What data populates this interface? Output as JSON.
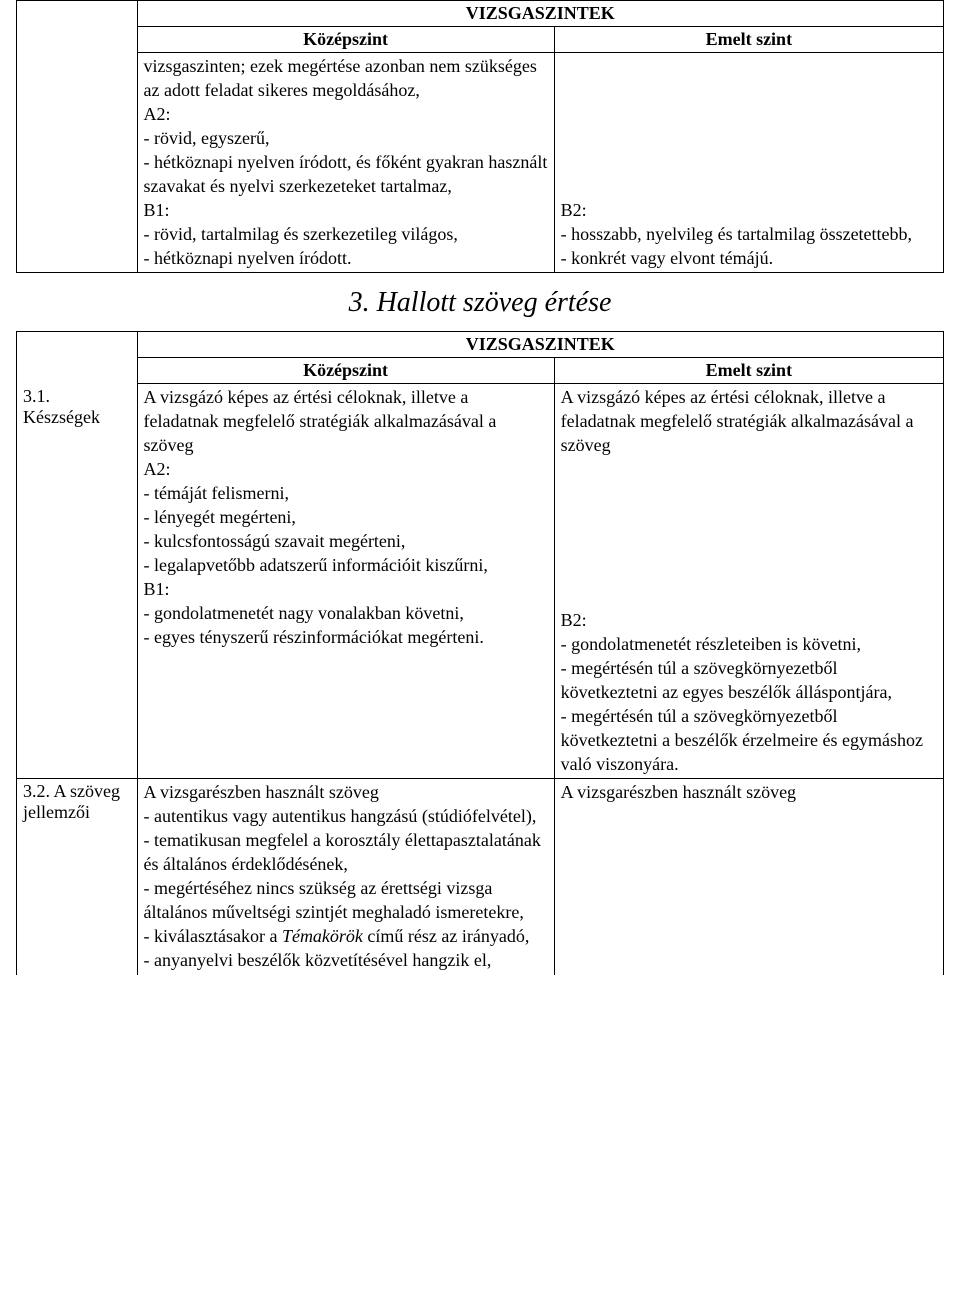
{
  "table1": {
    "title": "VIZSGASZINTEK",
    "col_mid": "Középszint",
    "col_right": "Emelt szint",
    "left_label": "",
    "mid_lines": [
      "vizsgaszinten; ezek megértése azonban nem szükséges az adott feladat sikeres megoldásához,",
      " A2:",
      "- rövid, egyszerű,",
      "- hétköznapi nyelven íródott, és főként gyakran használt szavakat és nyelvi szerkezeteket tartalmaz,",
      " B1:",
      "- rövid, tartalmilag és szerkezetileg világos,",
      "- hétköznapi nyelven íródott."
    ],
    "right_lines": [
      " B2:",
      "- hosszabb, nyelvileg és tartalmilag összetettebb,",
      "- konkrét vagy elvont témájú."
    ]
  },
  "section_heading": "3. Hallott szöveg értése",
  "table2": {
    "title": "VIZSGASZINTEK",
    "col_mid": "Középszint",
    "col_right": "Emelt szint",
    "row1": {
      "label": "3.1. Készségek",
      "mid_lines": [
        " A vizsgázó képes az értési céloknak, illetve a feladatnak megfelelő stratégiák alkalmazásával a szöveg",
        " A2:",
        "- témáját felismerni,",
        "- lényegét megérteni,",
        "- kulcsfontosságú szavait megérteni,",
        "- legalapvetőbb adatszerű információit kiszűrni,",
        " B1:",
        "- gondolatmenetét nagy vonalakban követni,",
        "- egyes tényszerű részinformációkat megérteni."
      ],
      "right_top": [
        " A vizsgázó képes az értési céloknak, illetve a feladatnak megfelelő stratégiák alkalmazásával a szöveg"
      ],
      "right_bottom": [
        " B2:",
        "- gondolatmenetét részleteiben is követni,",
        "- megértésén túl a szövegkörnyezetből következtetni az egyes beszélők álláspontjára,",
        "- megértésén túl a szövegkörnyezetből következtetni a beszélők érzelmeire és egymáshoz való viszonyára."
      ]
    },
    "row2": {
      "label": "3.2. A szöveg jellemzői",
      "mid_lines": [
        " A vizsgarészben használt szöveg",
        "- autentikus vagy autentikus hangzású (stúdiófelvétel),",
        "- tematikusan megfelel a korosztály élettapasztalatának és általános érdeklődésének,",
        "- megértéséhez nincs szükség az érettségi vizsga általános műveltségi szintjét meghaladó ismeretekre,",
        "- kiválasztásakor a <i>Témakörök</i> című rész az irányadó,",
        "- anyanyelvi beszélők közvetítésével hangzik el,"
      ],
      "right_lines": [
        " A vizsgarészben használt szöveg"
      ]
    }
  }
}
